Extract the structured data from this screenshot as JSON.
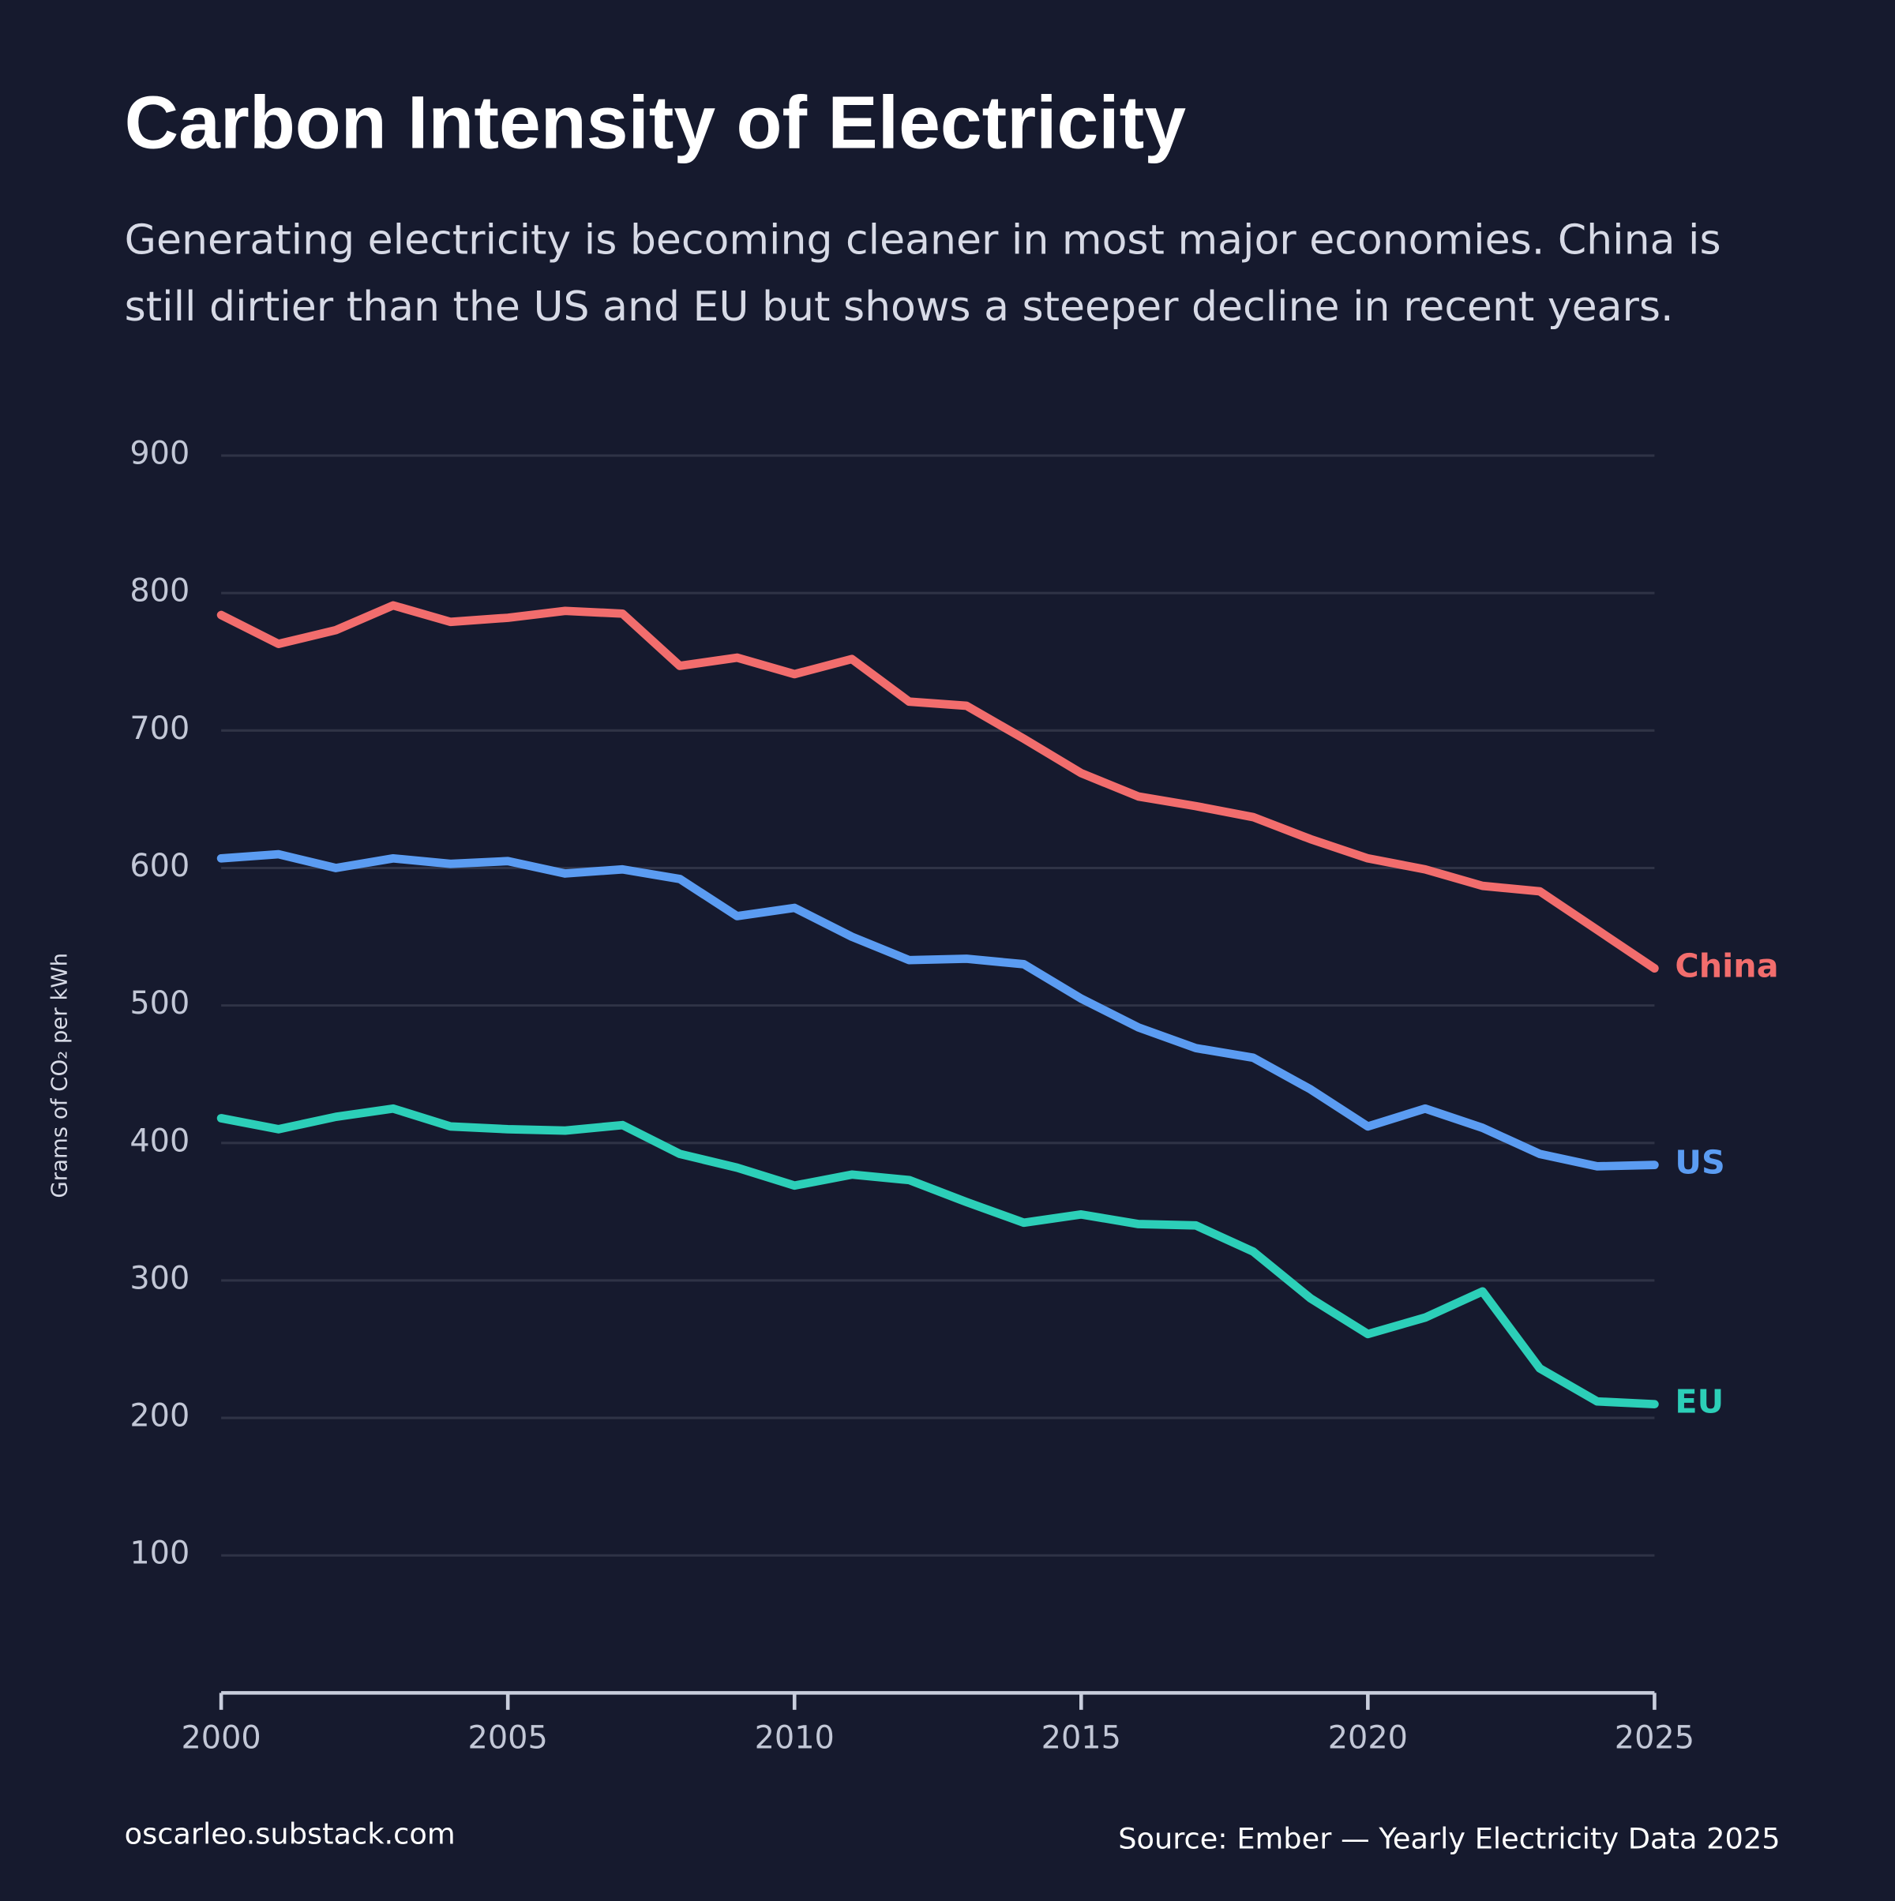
{
  "chart_data": {
    "type": "line",
    "title": "Carbon Intensity of Electricity",
    "subtitle": [
      "Generating electricity is becoming cleaner in most major economies. China is",
      "still dirtier than the US and EU but shows a steeper decline in recent years."
    ],
    "y_label": "Grams of CO₂ per kWh",
    "footer_left": "oscarleo.substack.com",
    "footer_right": "Source: Ember — Yearly Electricity Data 2025",
    "x": [
      2000,
      2001,
      2002,
      2003,
      2004,
      2005,
      2006,
      2007,
      2008,
      2009,
      2010,
      2011,
      2012,
      2013,
      2014,
      2015,
      2016,
      2017,
      2018,
      2019,
      2020,
      2021,
      2022,
      2023,
      2024,
      2025
    ],
    "xlim": [
      2000,
      2025
    ],
    "xticks": [
      2000,
      2005,
      2010,
      2015,
      2020,
      2025
    ],
    "ylim": [
      0,
      900
    ],
    "yticks": [
      100,
      200,
      300,
      400,
      500,
      600,
      700,
      800,
      900
    ],
    "grid": true,
    "series": [
      {
        "name": "China",
        "color": "#f26d6d",
        "values": [
          784,
          763,
          773,
          791,
          779,
          782,
          787,
          785,
          747,
          753,
          741,
          752,
          721,
          718,
          694,
          669,
          652,
          645,
          637,
          621,
          607,
          599,
          587,
          583,
          555,
          527
        ]
      },
      {
        "name": "US",
        "color": "#5b9cf2",
        "values": [
          607,
          610,
          600,
          607,
          603,
          605,
          596,
          599,
          592,
          565,
          571,
          550,
          533,
          534,
          530,
          505,
          484,
          469,
          462,
          439,
          412,
          425,
          411,
          392,
          383,
          384
        ]
      },
      {
        "name": "EU",
        "color": "#2ccfb8",
        "values": [
          418,
          410,
          419,
          425,
          412,
          410,
          409,
          413,
          392,
          382,
          369,
          377,
          373,
          357,
          342,
          348,
          341,
          340,
          321,
          287,
          261,
          273,
          292,
          236,
          212,
          210
        ]
      }
    ]
  }
}
